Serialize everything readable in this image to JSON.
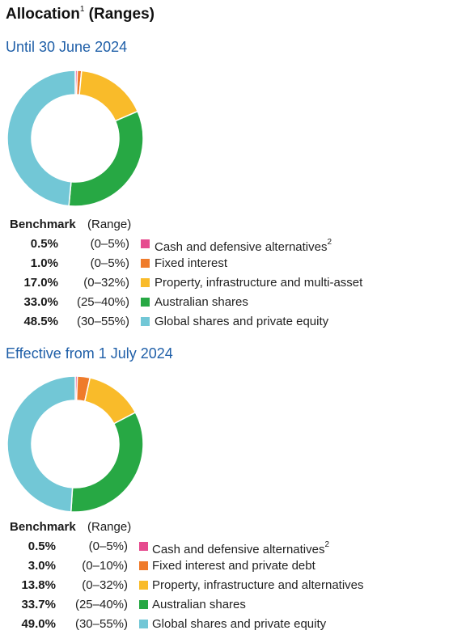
{
  "title": "Allocation",
  "title_sup": "1",
  "title_suffix": " (Ranges)",
  "colors": {
    "cash": "#e64b8f",
    "fixed": "#ef7b2b",
    "property": "#f9bb2a",
    "australian": "#27a844",
    "global": "#72c7d6"
  },
  "chart_data": [
    {
      "type": "pie",
      "title": "Until 30 June 2024",
      "header_benchmark": "Benchmark",
      "header_range": "(Range)",
      "slices": [
        {
          "label": "Cash and defensive alternatives",
          "sup": "2",
          "value": 0.5,
          "benchmark": "0.5%",
          "range": "(0–5%)",
          "color_key": "cash"
        },
        {
          "label": "Fixed interest",
          "sup": "",
          "value": 1.0,
          "benchmark": "1.0%",
          "range": "(0–5%)",
          "color_key": "fixed"
        },
        {
          "label": "Property, infrastructure and multi-asset",
          "sup": "",
          "value": 17.0,
          "benchmark": "17.0%",
          "range": "(0–32%)",
          "color_key": "property"
        },
        {
          "label": "Australian shares",
          "sup": "",
          "value": 33.0,
          "benchmark": "33.0%",
          "range": "(25–40%)",
          "color_key": "australian"
        },
        {
          "label": "Global shares and private equity",
          "sup": "",
          "value": 48.5,
          "benchmark": "48.5%",
          "range": "(30–55%)",
          "color_key": "global"
        }
      ]
    },
    {
      "type": "pie",
      "title": "Effective from 1 July 2024",
      "header_benchmark": "Benchmark",
      "header_range": "(Range)",
      "slices": [
        {
          "label": "Cash and defensive alternatives",
          "sup": "2",
          "value": 0.5,
          "benchmark": "0.5%",
          "range": "(0–5%)",
          "color_key": "cash"
        },
        {
          "label": "Fixed interest and private debt",
          "sup": "",
          "value": 3.0,
          "benchmark": "3.0%",
          "range": "(0–10%)",
          "color_key": "fixed"
        },
        {
          "label": "Property, infrastructure and alternatives",
          "sup": "",
          "value": 13.8,
          "benchmark": "13.8%",
          "range": "(0–32%)",
          "color_key": "property"
        },
        {
          "label": "Australian shares",
          "sup": "",
          "value": 33.7,
          "benchmark": "33.7%",
          "range": "(25–40%)",
          "color_key": "australian"
        },
        {
          "label": "Global shares and private equity",
          "sup": "",
          "value": 49.0,
          "benchmark": "49.0%",
          "range": "(30–55%)",
          "color_key": "global"
        }
      ]
    }
  ]
}
